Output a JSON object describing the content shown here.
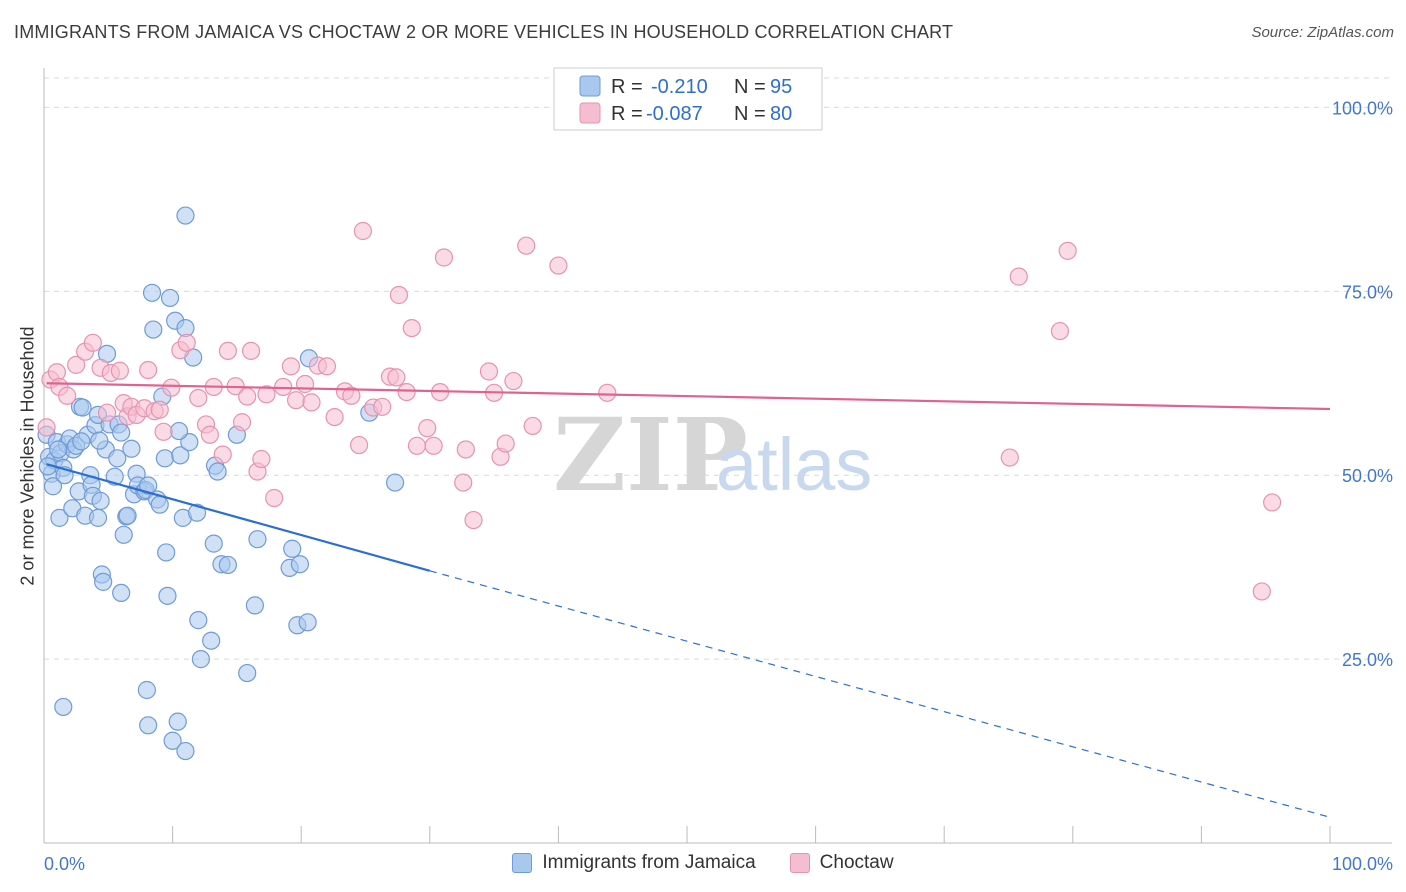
{
  "header": {
    "title": "IMMIGRANTS FROM JAMAICA VS CHOCTAW 2 OR MORE VEHICLES IN HOUSEHOLD CORRELATION CHART",
    "source": "Source: ZipAtlas.com"
  },
  "watermark": {
    "zip": "ZIP",
    "atlas": "atlas"
  },
  "colors": {
    "blue_fill": "#a9c8ee",
    "blue_stroke": "#6f9bd6",
    "blue_line": "#2c6fce",
    "pink_fill": "#f5bdd0",
    "pink_stroke": "#e693b0",
    "pink_line": "#e0628f",
    "tick_text": "#4477cc",
    "grid": "#d9d9d9"
  },
  "legend": {
    "rows": [
      {
        "r_label": "R =",
        "r_value": "-0.210",
        "n_label": "N =",
        "n_value": "95"
      },
      {
        "r_label": "R =",
        "r_value": "-0.087",
        "n_label": "N =",
        "n_value": "80"
      }
    ]
  },
  "chart_data": {
    "type": "scatter",
    "title": "IMMIGRANTS FROM JAMAICA VS CHOCTAW 2 OR MORE VEHICLES IN HOUSEHOLD CORRELATION CHART",
    "xlabel": "",
    "ylabel": "2 or more Vehicles in Household",
    "xlim": [
      0,
      100
    ],
    "ylim": [
      0,
      104
    ],
    "x_tick_labels": [
      "0.0%",
      "100.0%"
    ],
    "y_tick_labels": [
      "100.0%",
      "75.0%",
      "50.0%",
      "25.0%"
    ],
    "y_tick_values": [
      100,
      75,
      50,
      25
    ],
    "grid": true,
    "legend_position": "top-center",
    "series": [
      {
        "name": "Immigrants from Jamaica",
        "color": "#a9c8ee",
        "trend": {
          "x0": 0.2,
          "y0": 51.5,
          "x1": 30,
          "y1": 37.0,
          "x_dash_end": 100,
          "y_dash_end": 3.5
        },
        "points": [
          [
            0.2,
            55.5
          ],
          [
            0.4,
            52.5
          ],
          [
            0.6,
            50.2
          ],
          [
            0.7,
            48.5
          ],
          [
            0.8,
            52.0
          ],
          [
            1.0,
            54.5
          ],
          [
            1.2,
            44.2
          ],
          [
            1.3,
            53.0
          ],
          [
            1.5,
            51.0
          ],
          [
            1.6,
            50.0
          ],
          [
            1.8,
            54.2
          ],
          [
            2.0,
            55.0
          ],
          [
            2.2,
            45.5
          ],
          [
            2.3,
            53.5
          ],
          [
            2.5,
            54.0
          ],
          [
            2.7,
            47.8
          ],
          [
            2.8,
            59.3
          ],
          [
            3.0,
            59.2
          ],
          [
            3.2,
            44.5
          ],
          [
            3.4,
            55.5
          ],
          [
            3.6,
            50.0
          ],
          [
            3.7,
            48.7
          ],
          [
            3.8,
            47.2
          ],
          [
            4.0,
            56.8
          ],
          [
            4.2,
            58.2
          ],
          [
            4.2,
            44.2
          ],
          [
            4.4,
            46.5
          ],
          [
            4.5,
            36.5
          ],
          [
            4.6,
            35.5
          ],
          [
            4.8,
            53.5
          ],
          [
            4.9,
            66.5
          ],
          [
            5.1,
            56.9
          ],
          [
            5.5,
            49.8
          ],
          [
            5.7,
            52.3
          ],
          [
            5.8,
            56.9
          ],
          [
            6.0,
            55.8
          ],
          [
            6.0,
            34.0
          ],
          [
            6.2,
            41.9
          ],
          [
            6.4,
            44.4
          ],
          [
            6.5,
            44.5
          ],
          [
            6.8,
            53.6
          ],
          [
            7.0,
            47.4
          ],
          [
            7.2,
            50.2
          ],
          [
            7.3,
            48.6
          ],
          [
            7.8,
            47.8
          ],
          [
            7.9,
            48.0
          ],
          [
            8.0,
            20.8
          ],
          [
            8.1,
            48.6
          ],
          [
            8.1,
            16.0
          ],
          [
            8.4,
            74.8
          ],
          [
            8.5,
            69.8
          ],
          [
            8.8,
            46.7
          ],
          [
            9.0,
            46.0
          ],
          [
            9.2,
            60.7
          ],
          [
            9.4,
            52.3
          ],
          [
            9.5,
            39.5
          ],
          [
            9.6,
            33.6
          ],
          [
            9.8,
            74.1
          ],
          [
            10.0,
            13.9
          ],
          [
            10.2,
            71.0
          ],
          [
            10.4,
            16.5
          ],
          [
            10.6,
            52.7
          ],
          [
            10.8,
            44.2
          ],
          [
            11.0,
            12.5
          ],
          [
            11.0,
            70.0
          ],
          [
            11.3,
            54.5
          ],
          [
            11.6,
            66.0
          ],
          [
            11.9,
            44.9
          ],
          [
            12.0,
            30.3
          ],
          [
            12.2,
            25.0
          ],
          [
            13.0,
            27.5
          ],
          [
            13.2,
            40.7
          ],
          [
            13.3,
            51.3
          ],
          [
            13.8,
            37.9
          ],
          [
            14.3,
            37.8
          ],
          [
            15.0,
            55.5
          ],
          [
            15.8,
            23.1
          ],
          [
            16.4,
            32.3
          ],
          [
            16.6,
            41.3
          ],
          [
            19.1,
            37.4
          ],
          [
            19.3,
            40.0
          ],
          [
            19.7,
            29.6
          ],
          [
            19.9,
            37.9
          ],
          [
            20.5,
            30.0
          ],
          [
            20.6,
            65.9
          ],
          [
            25.3,
            58.5
          ],
          [
            27.3,
            49.0
          ],
          [
            11.0,
            85.3
          ],
          [
            10.5,
            56.0
          ],
          [
            13.5,
            50.5
          ],
          [
            0.3,
            51.2
          ],
          [
            1.1,
            53.5
          ],
          [
            2.9,
            54.6
          ],
          [
            4.3,
            54.7
          ],
          [
            1.5,
            18.5
          ]
        ]
      },
      {
        "name": "Choctaw",
        "color": "#f5bdd0",
        "trend": {
          "x0": 0.2,
          "y0": 62.5,
          "x1": 100,
          "y1": 59.0
        },
        "points": [
          [
            0.2,
            56.5
          ],
          [
            0.5,
            63.0
          ],
          [
            1.0,
            64.0
          ],
          [
            1.2,
            62.0
          ],
          [
            1.8,
            60.8
          ],
          [
            2.5,
            65.0
          ],
          [
            3.2,
            66.8
          ],
          [
            3.8,
            68.0
          ],
          [
            4.4,
            64.6
          ],
          [
            4.9,
            58.5
          ],
          [
            5.2,
            63.9
          ],
          [
            5.9,
            64.2
          ],
          [
            6.2,
            59.8
          ],
          [
            6.5,
            58.0
          ],
          [
            6.8,
            59.3
          ],
          [
            7.2,
            58.2
          ],
          [
            7.8,
            59.1
          ],
          [
            8.1,
            64.3
          ],
          [
            8.6,
            58.7
          ],
          [
            9.0,
            58.9
          ],
          [
            9.3,
            55.9
          ],
          [
            9.9,
            61.9
          ],
          [
            10.6,
            67.0
          ],
          [
            11.1,
            68.0
          ],
          [
            12.0,
            60.5
          ],
          [
            12.6,
            56.9
          ],
          [
            12.9,
            55.5
          ],
          [
            13.2,
            62.0
          ],
          [
            13.9,
            52.8
          ],
          [
            14.3,
            66.9
          ],
          [
            14.9,
            62.1
          ],
          [
            15.4,
            57.2
          ],
          [
            15.8,
            60.7
          ],
          [
            16.1,
            66.9
          ],
          [
            16.6,
            50.5
          ],
          [
            16.9,
            52.2
          ],
          [
            17.3,
            61.0
          ],
          [
            17.9,
            46.9
          ],
          [
            18.6,
            62.0
          ],
          [
            19.2,
            64.8
          ],
          [
            19.6,
            60.2
          ],
          [
            20.3,
            62.4
          ],
          [
            20.8,
            59.9
          ],
          [
            21.3,
            64.9
          ],
          [
            22.0,
            64.8
          ],
          [
            22.6,
            57.9
          ],
          [
            23.4,
            61.4
          ],
          [
            23.9,
            60.8
          ],
          [
            24.5,
            54.1
          ],
          [
            24.8,
            83.2
          ],
          [
            25.6,
            59.2
          ],
          [
            26.3,
            59.3
          ],
          [
            26.9,
            63.4
          ],
          [
            27.4,
            63.3
          ],
          [
            27.6,
            74.5
          ],
          [
            28.2,
            61.3
          ],
          [
            28.6,
            70.0
          ],
          [
            29.0,
            54.0
          ],
          [
            29.8,
            56.4
          ],
          [
            30.3,
            54.0
          ],
          [
            30.8,
            61.3
          ],
          [
            31.1,
            79.6
          ],
          [
            32.6,
            49.0
          ],
          [
            32.8,
            53.5
          ],
          [
            33.4,
            43.9
          ],
          [
            34.6,
            64.1
          ],
          [
            35.0,
            61.2
          ],
          [
            35.5,
            52.5
          ],
          [
            35.9,
            54.3
          ],
          [
            36.5,
            62.8
          ],
          [
            38.0,
            56.7
          ],
          [
            37.5,
            81.2
          ],
          [
            40.0,
            78.5
          ],
          [
            43.8,
            61.2
          ],
          [
            75.8,
            77.0
          ],
          [
            75.1,
            52.4
          ],
          [
            79.0,
            69.6
          ],
          [
            79.6,
            80.5
          ],
          [
            95.5,
            46.3
          ],
          [
            94.7,
            34.2
          ]
        ]
      }
    ]
  },
  "bottom_legend": {
    "items": [
      {
        "label": "Immigrants from Jamaica"
      },
      {
        "label": "Choctaw"
      }
    ]
  }
}
